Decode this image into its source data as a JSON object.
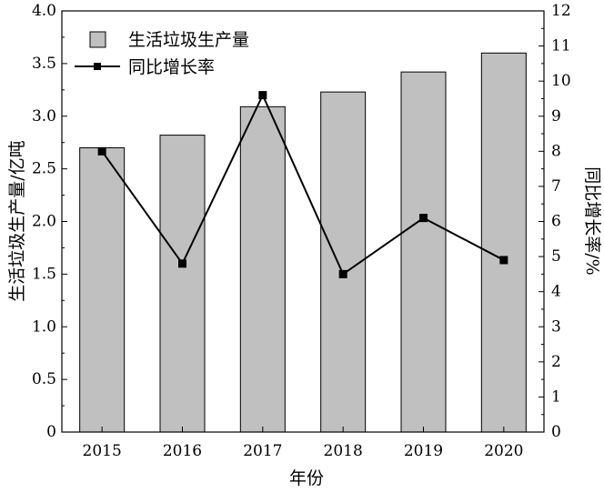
{
  "chart_data": {
    "type": "bar+line",
    "categories": [
      "2015",
      "2016",
      "2017",
      "2018",
      "2019",
      "2020"
    ],
    "series": [
      {
        "name": "生活垃圾生产量",
        "type": "bar",
        "axis": "left",
        "values": [
          2.7,
          2.82,
          3.09,
          3.23,
          3.42,
          3.6
        ]
      },
      {
        "name": "同比增长率",
        "type": "line",
        "axis": "right",
        "values": [
          8.0,
          4.8,
          9.6,
          4.5,
          6.1,
          4.9
        ]
      }
    ],
    "xlabel": "年份",
    "ylabel": "生活垃圾生产量/亿吨",
    "y2label": "同比增长率/%",
    "ylim": [
      0,
      4.0
    ],
    "y2lim": [
      0,
      12
    ],
    "yticks": [
      "0",
      "0.5",
      "1.0",
      "1.5",
      "2.0",
      "2.5",
      "3.0",
      "3.5",
      "4.0"
    ],
    "y2ticks": [
      "0",
      "1",
      "2",
      "3",
      "4",
      "5",
      "6",
      "7",
      "8",
      "9",
      "10",
      "11",
      "12"
    ],
    "legend_position": "top-left",
    "grid": false,
    "colors": {
      "bar_fill": "#c0c0c0",
      "bar_stroke": "#000000",
      "line": "#000000",
      "marker": "#000000"
    }
  }
}
